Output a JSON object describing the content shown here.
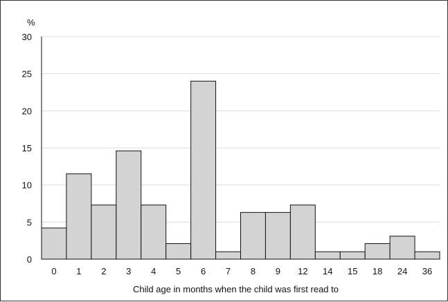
{
  "chart_data": {
    "type": "bar",
    "title": "",
    "ylabel": "%",
    "xlabel": "Child age in months when the child was first read to",
    "categories": [
      "0",
      "1",
      "2",
      "3",
      "4",
      "5",
      "6",
      "7",
      "8",
      "9",
      "12",
      "14",
      "15",
      "18",
      "24",
      "36"
    ],
    "values": [
      4.2,
      11.5,
      7.3,
      14.6,
      7.3,
      2.1,
      24.0,
      1.0,
      6.3,
      6.3,
      7.3,
      1.0,
      1.0,
      2.1,
      3.1,
      1.0
    ],
    "ylim": [
      0,
      30
    ],
    "yticks": [
      "0",
      "5",
      "10",
      "15",
      "20",
      "25",
      "30"
    ],
    "grid": true,
    "bar_color": "#d3d3d3",
    "bar_edge_color": "#111111",
    "grid_color": "#dcdcdc"
  }
}
